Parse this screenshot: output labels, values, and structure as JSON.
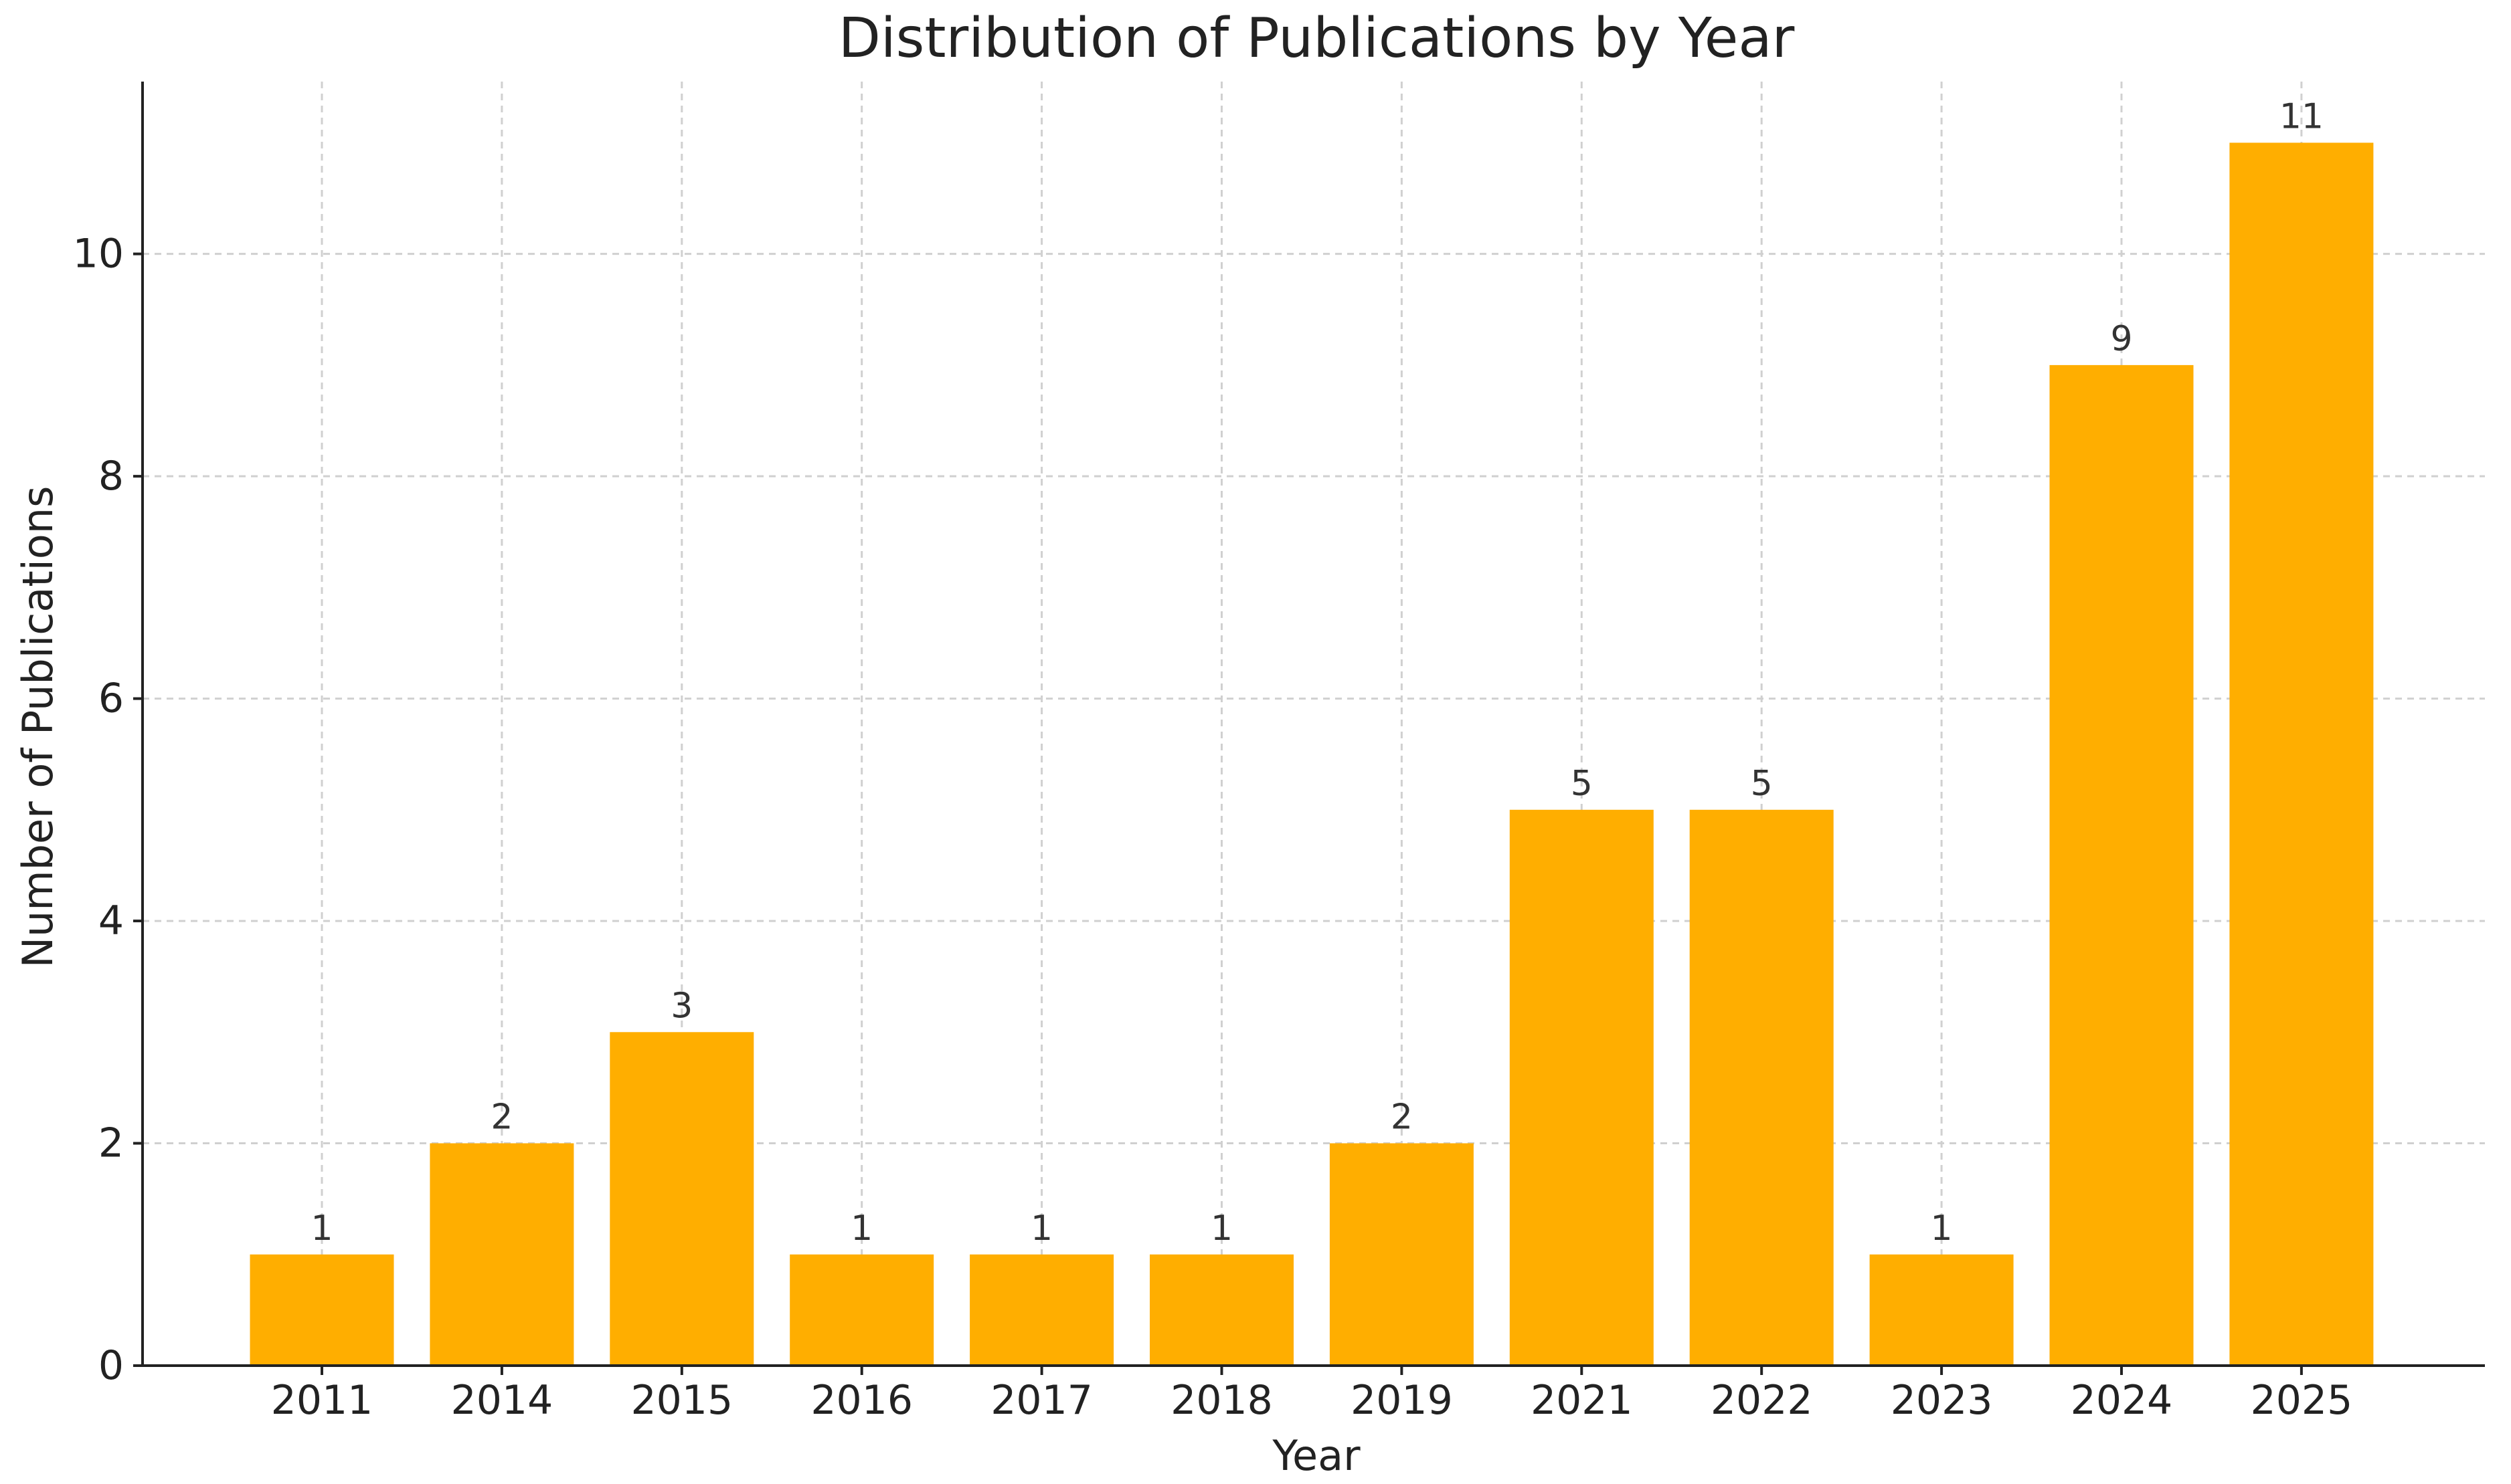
{
  "chart_data": {
    "type": "bar",
    "title": "Distribution of Publications by Year",
    "xlabel": "Year",
    "ylabel": "Number of Publications",
    "categories": [
      "2011",
      "2014",
      "2015",
      "2016",
      "2017",
      "2018",
      "2019",
      "2021",
      "2022",
      "2023",
      "2024",
      "2025"
    ],
    "values": [
      1,
      2,
      3,
      1,
      1,
      1,
      2,
      5,
      5,
      1,
      9,
      11
    ],
    "ylim": [
      0,
      11.55
    ],
    "yticks": [
      0,
      2,
      4,
      6,
      8,
      10
    ],
    "grid": true,
    "data_labels": true,
    "bar_color": "#FFAE00",
    "gridline_color": "#d0d0d0",
    "text_color": "#222222"
  }
}
